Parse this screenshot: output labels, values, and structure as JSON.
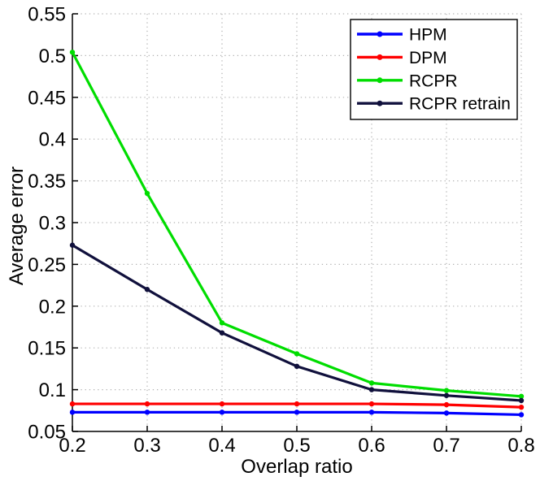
{
  "chart_data": {
    "type": "line",
    "title": "",
    "xlabel": "Overlap ratio",
    "ylabel": "Average error",
    "x": [
      0.2,
      0.3,
      0.4,
      0.5,
      0.6,
      0.7,
      0.8
    ],
    "xlim": [
      0.2,
      0.8
    ],
    "ylim": [
      0.05,
      0.55
    ],
    "xticks": [
      "0.2",
      "0.3",
      "0.4",
      "0.5",
      "0.6",
      "0.7",
      "0.8"
    ],
    "yticks": [
      "0.05",
      "0.1",
      "0.15",
      "0.2",
      "0.25",
      "0.3",
      "0.35",
      "0.4",
      "0.45",
      "0.5",
      "0.55"
    ],
    "grid": "dotted",
    "legend_position": "top-right",
    "series": [
      {
        "name": "HPM",
        "color": "#0000ff",
        "values": [
          0.073,
          0.073,
          0.073,
          0.073,
          0.073,
          0.072,
          0.07
        ]
      },
      {
        "name": "DPM",
        "color": "#ff0000",
        "values": [
          0.083,
          0.083,
          0.083,
          0.083,
          0.083,
          0.082,
          0.079
        ]
      },
      {
        "name": "RCPR",
        "color": "#00dd00",
        "values": [
          0.504,
          0.335,
          0.18,
          0.143,
          0.108,
          0.099,
          0.092
        ]
      },
      {
        "name": "RCPR retrain",
        "color": "#10103c",
        "values": [
          0.273,
          0.22,
          0.168,
          0.128,
          0.1,
          0.093,
          0.087
        ]
      }
    ],
    "colors": {
      "axis": "#000000",
      "grid": "#b2b2b2",
      "background": "#ffffff",
      "legend_border": "#000000",
      "legend_fill": "#ffffff"
    }
  }
}
